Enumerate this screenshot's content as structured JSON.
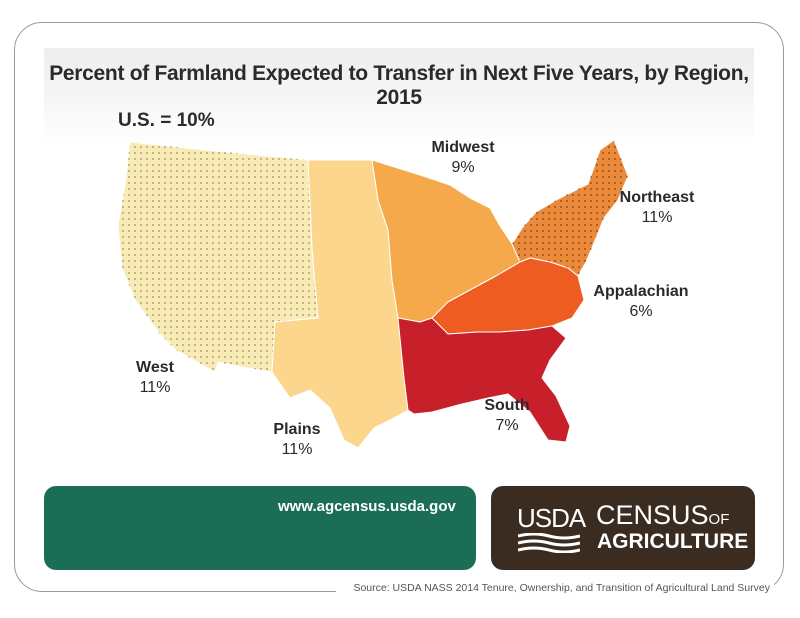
{
  "title": "Percent of Farmland Expected to Transfer in Next Five Years, by Region, 2015",
  "us_total": "U.S. = 10%",
  "regions": {
    "west": {
      "name": "West",
      "value": "11%",
      "color": "#f8ebb6",
      "pattern": "dotted"
    },
    "plains": {
      "name": "Plains",
      "value": "11%",
      "color": "#fbd68c",
      "pattern": "none"
    },
    "midwest": {
      "name": "Midwest",
      "value": "9%",
      "color": "#f5a94a",
      "pattern": "none"
    },
    "northeast": {
      "name": "Northeast",
      "value": "11%",
      "color": "#ec8a3c",
      "pattern": "dotted"
    },
    "appalachian": {
      "name": "Appalachian",
      "value": "6%",
      "color": "#ef5c22",
      "pattern": "none"
    },
    "south": {
      "name": "South",
      "value": "7%",
      "color": "#c8202a",
      "pattern": "none"
    }
  },
  "footer": {
    "url": "www.agcensus.usda.gov",
    "usda": "USDA",
    "census": "CENSUS",
    "of": "OF",
    "agriculture": "AGRICULTURE"
  },
  "source": "Source: USDA NASS 2014 Tenure, Ownership, and Transition of Agricultural Land Survey"
}
